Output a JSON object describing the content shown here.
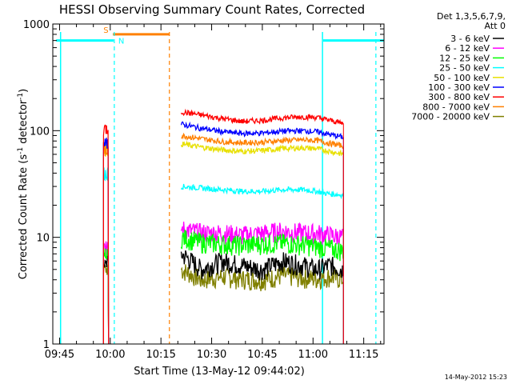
{
  "chart_data": {
    "type": "line",
    "title": "HESSI Observing Summary Count Rates, Corrected",
    "xlabel": "Start Time (13-May-12 09:44:02)",
    "ylabel_main": "Corrected Count Rate (s",
    "ylabel_sup1": "-1",
    "ylabel_mid": " detector",
    "ylabel_sup2": "-1",
    "ylabel_end": ")",
    "ylog": true,
    "ylim": [
      1,
      1000
    ],
    "xlim_minutes": [
      -2,
      96
    ],
    "xticks": [
      {
        "min": 0,
        "label": "09:45"
      },
      {
        "min": 15,
        "label": "10:00"
      },
      {
        "min": 30,
        "label": "10:15"
      },
      {
        "min": 45,
        "label": "10:30"
      },
      {
        "min": 60,
        "label": "10:45"
      },
      {
        "min": 75,
        "label": "11:00"
      },
      {
        "min": 90,
        "label": "11:15"
      }
    ],
    "yticks": [
      {
        "v": 1,
        "label": "1"
      },
      {
        "v": 10,
        "label": "10"
      },
      {
        "v": 100,
        "label": "100"
      },
      {
        "v": 1000,
        "label": "1000"
      }
    ],
    "legend_header": [
      "Det 1,3,5,6,7,9,",
      "Att 0"
    ],
    "legend_position": "right",
    "series": [
      {
        "name": "3 - 6 keV",
        "color": "#000000",
        "values": [
          7,
          5,
          6,
          5.5,
          5,
          6,
          5.5,
          5,
          5.5,
          5
        ]
      },
      {
        "name": "6 - 12 keV",
        "color": "#ff00ff",
        "values": [
          12,
          11,
          11,
          10.5,
          11,
          11.5,
          11,
          11,
          10.5,
          10
        ]
      },
      {
        "name": "12 - 25 keV",
        "color": "#00ff00",
        "values": [
          10,
          9,
          8.7,
          8.5,
          8.7,
          8.9,
          8.6,
          8.2,
          7.9,
          7.5
        ]
      },
      {
        "name": "25 - 50 keV",
        "color": "#00ffff",
        "values": [
          30,
          29,
          28,
          27,
          27,
          28,
          28,
          27,
          25.5,
          25
        ]
      },
      {
        "name": "50 - 100 keV",
        "color": "#e8e000",
        "values": [
          75,
          70,
          66,
          64,
          65,
          68,
          69,
          68,
          64,
          60
        ]
      },
      {
        "name": "100 - 300 keV",
        "color": "#0000ff",
        "values": [
          115,
          105,
          98,
          94,
          95,
          99,
          100,
          98,
          92,
          87
        ]
      },
      {
        "name": "300 - 800 keV",
        "color": "#ff0000",
        "values": [
          150,
          140,
          130,
          122,
          125,
          132,
          135,
          133,
          125,
          117
        ]
      },
      {
        "name": "800 - 7000 keV",
        "color": "#ff8000",
        "values": [
          90,
          84,
          79,
          77,
          78,
          81,
          82,
          81,
          76,
          72
        ]
      },
      {
        "name": "7000 - 20000 keV",
        "color": "#808000",
        "values": [
          5,
          4,
          4.3,
          4.1,
          4,
          4.4,
          4.2,
          4.1,
          4.3,
          4
        ]
      }
    ],
    "segment_x_minutes": [
      36,
      42,
      48,
      54,
      60,
      66,
      72,
      76,
      80,
      84
    ],
    "pre_spike": {
      "x_minutes": [
        13,
        14.5
      ],
      "values": {
        "3 - 6 keV": 6,
        "6 - 12 keV": 8,
        "12 - 25 keV": 7,
        "25 - 50 keV": 40,
        "50 - 100 keV": 65,
        "100 - 300 keV": 75,
        "300 - 800 keV": 105,
        "800 - 7000 keV": 68,
        "7000 - 20000 keV": 5
      }
    },
    "events": {
      "saa": {
        "label": "S",
        "start": 15.8,
        "end": 32.5,
        "level": 800,
        "color": "#ff8000"
      },
      "night": {
        "label": "N",
        "intervals": [
          [
            -1,
            16
          ],
          [
            78,
            96
          ]
        ],
        "level": 700,
        "color": "#00ffff"
      },
      "solid_lines": [
        {
          "x": 0.3,
          "color": "#00ffff"
        },
        {
          "x": 77.8,
          "color": "#00ffff"
        }
      ],
      "dashed_lines": [
        {
          "x": 16.2,
          "color": "#00ffff"
        },
        {
          "x": 32.5,
          "color": "#ff8000"
        },
        {
          "x": 93.6,
          "color": "#00ffff"
        }
      ]
    },
    "footer_timestamp": "14-May-2012 15:23"
  }
}
